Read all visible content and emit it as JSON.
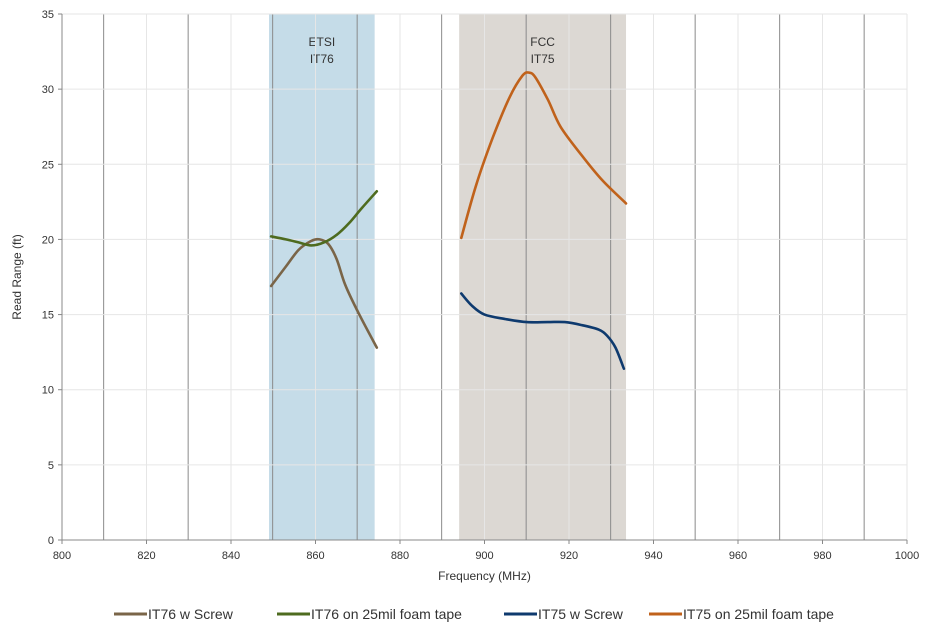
{
  "chart_data": {
    "type": "line",
    "xlabel": "Frequency (MHz)",
    "ylabel": "Read Range (ft)",
    "xlim": [
      800,
      1000
    ],
    "ylim": [
      0,
      35
    ],
    "xticks": [
      "800",
      "820",
      "840",
      "860",
      "880",
      "900",
      "920",
      "940",
      "960",
      "980",
      "1000"
    ],
    "yticks": [
      "0",
      "5",
      "10",
      "15",
      "20",
      "25",
      "30",
      "35"
    ],
    "grid": true,
    "legend_position": "bottom",
    "bands": [
      {
        "x_start": 849,
        "x_end": 874,
        "label_line1": "ETSI",
        "label_line2": "IT76",
        "color": "#c5dce8"
      },
      {
        "x_start": 894,
        "x_end": 933.5,
        "label_line1": "FCC",
        "label_line2": "IT75",
        "color": "#dcd8d3"
      }
    ],
    "series": [
      {
        "name": "IT76 w Screw",
        "color": "#7a6548",
        "points": [
          [
            849.5,
            16.9
          ],
          [
            853,
            18.2
          ],
          [
            856,
            19.3
          ],
          [
            859,
            19.9
          ],
          [
            861,
            20.0
          ],
          [
            863,
            19.7
          ],
          [
            865,
            18.7
          ],
          [
            867,
            17.0
          ],
          [
            870,
            15.2
          ],
          [
            874.5,
            12.8
          ]
        ]
      },
      {
        "name": "IT76 on 25mil foam tape",
        "color": "#4e6b1f",
        "points": [
          [
            849.5,
            20.2
          ],
          [
            853,
            20.0
          ],
          [
            856,
            19.8
          ],
          [
            859,
            19.6
          ],
          [
            862,
            19.8
          ],
          [
            865,
            20.3
          ],
          [
            868,
            21.1
          ],
          [
            871,
            22.1
          ],
          [
            874.5,
            23.2
          ]
        ]
      },
      {
        "name": "IT75 w Screw",
        "color": "#0e3a6e",
        "points": [
          [
            894.5,
            16.4
          ],
          [
            897,
            15.6
          ],
          [
            900,
            15.0
          ],
          [
            905,
            14.7
          ],
          [
            910,
            14.5
          ],
          [
            915,
            14.5
          ],
          [
            919,
            14.5
          ],
          [
            923,
            14.3
          ],
          [
            927,
            14.0
          ],
          [
            929,
            13.6
          ],
          [
            931,
            12.8
          ],
          [
            933,
            11.4
          ]
        ]
      },
      {
        "name": "IT75 on 25mil foam tape",
        "color": "#c0621b",
        "points": [
          [
            894.5,
            20.1
          ],
          [
            898,
            23.6
          ],
          [
            902,
            26.8
          ],
          [
            906,
            29.5
          ],
          [
            909,
            30.9
          ],
          [
            910.5,
            31.1
          ],
          [
            912,
            30.8
          ],
          [
            915,
            29.3
          ],
          [
            918,
            27.5
          ],
          [
            923,
            25.6
          ],
          [
            928,
            23.9
          ],
          [
            933.5,
            22.4
          ]
        ]
      }
    ]
  }
}
